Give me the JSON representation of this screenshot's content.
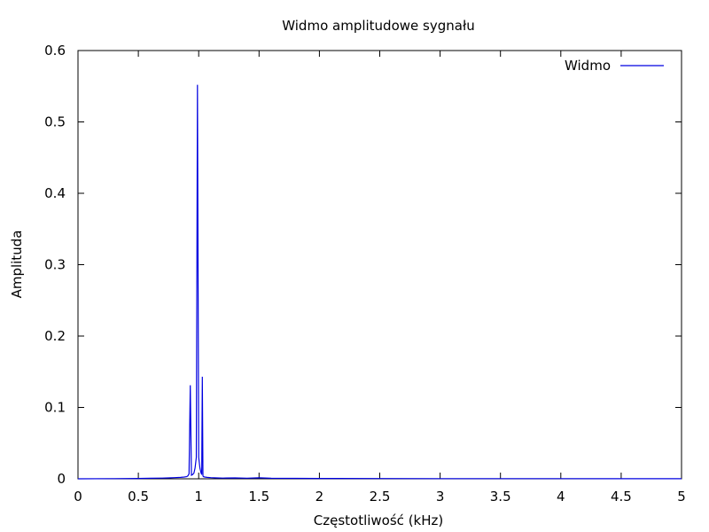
{
  "chart_data": {
    "type": "line",
    "title": "Widmo amplitudowe sygnału",
    "xlabel": "Częstotliwość (kHz)",
    "ylabel": "Amplituda",
    "xlim": [
      0,
      5
    ],
    "ylim": [
      0,
      0.6
    ],
    "x_ticks": [
      0,
      0.5,
      1,
      1.5,
      2,
      2.5,
      3,
      3.5,
      4,
      4.5,
      5
    ],
    "x_tick_labels": [
      "0",
      "0.5",
      "1",
      "1.5",
      "2",
      "2.5",
      "3",
      "3.5",
      "4",
      "4.5",
      "5"
    ],
    "y_ticks": [
      0,
      0.1,
      0.2,
      0.3,
      0.4,
      0.5,
      0.6
    ],
    "y_tick_labels": [
      "0",
      "0.1",
      "0.2",
      "0.3",
      "0.4",
      "0.5",
      "0.6"
    ],
    "grid": false,
    "legend_position": "top-right",
    "series": [
      {
        "name": "Widmo",
        "color": "#0000e0",
        "x": [
          0,
          0.3,
          0.5,
          0.6,
          0.7,
          0.75,
          0.8,
          0.85,
          0.88,
          0.9,
          0.91,
          0.92,
          0.93,
          0.94,
          0.95,
          0.96,
          0.97,
          0.98,
          0.99,
          1.0,
          1.01,
          1.02,
          1.025,
          1.03,
          1.035,
          1.04,
          1.05,
          1.07,
          1.1,
          1.15,
          1.2,
          1.3,
          1.4,
          1.5,
          1.6,
          1.8,
          2.0,
          2.5,
          3.0,
          3.5,
          4.0,
          4.5,
          5.0
        ],
        "values": [
          0,
          0.0002,
          0.0005,
          0.0007,
          0.001,
          0.0013,
          0.0016,
          0.002,
          0.0025,
          0.003,
          0.004,
          0.007,
          0.131,
          0.005,
          0.006,
          0.008,
          0.015,
          0.03,
          0.552,
          0.03,
          0.015,
          0.008,
          0.006,
          0.143,
          0.004,
          0.003,
          0.0025,
          0.002,
          0.0016,
          0.0013,
          0.001,
          0.0012,
          0.0009,
          0.0014,
          0.0008,
          0.0006,
          0.0005,
          0.0004,
          0.0003,
          0.0002,
          0.0002,
          0.0001,
          0.0001
        ]
      }
    ]
  }
}
